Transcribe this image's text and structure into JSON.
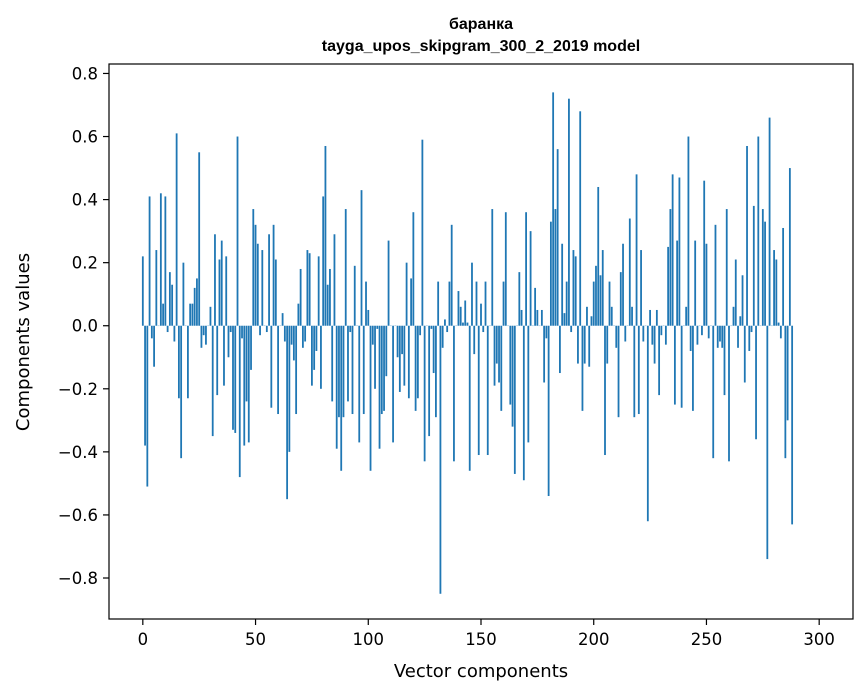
{
  "chart_data": {
    "type": "bar",
    "title": "баранка",
    "subtitle": "tayga_upos_skipgram_300_2_2019 model",
    "xlabel": "Vector components",
    "ylabel": "Components values",
    "xlim": [
      -15,
      315
    ],
    "ylim": [
      -0.93,
      0.83
    ],
    "xticks": [
      0,
      50,
      100,
      150,
      200,
      250,
      300
    ],
    "yticks": [
      -0.8,
      -0.6,
      -0.4,
      -0.2,
      0.0,
      0.2,
      0.4,
      0.6,
      0.8
    ],
    "xtick_labels": [
      "0",
      "50",
      "100",
      "150",
      "200",
      "250",
      "300"
    ],
    "ytick_labels": [
      "−0.8",
      "−0.6",
      "−0.4",
      "−0.2",
      "0.0",
      "0.2",
      "0.4",
      "0.6",
      "0.8"
    ],
    "grid": false,
    "color": "#1f77b4",
    "values": [
      0.22,
      -0.38,
      -0.51,
      0.41,
      -0.04,
      -0.13,
      0.24,
      0.0,
      0.42,
      0.07,
      0.41,
      -0.02,
      0.17,
      0.13,
      -0.05,
      0.61,
      -0.23,
      -0.42,
      0.2,
      0.0,
      -0.23,
      0.07,
      0.07,
      0.12,
      0.15,
      0.55,
      -0.07,
      -0.03,
      -0.06,
      0.0,
      0.06,
      -0.35,
      0.29,
      -0.22,
      0.21,
      0.27,
      -0.19,
      0.22,
      -0.1,
      -0.02,
      -0.33,
      -0.34,
      0.6,
      -0.48,
      -0.04,
      -0.38,
      -0.24,
      -0.37,
      -0.14,
      0.37,
      0.32,
      0.26,
      -0.03,
      0.24,
      0.0,
      -0.02,
      0.29,
      -0.26,
      0.32,
      0.21,
      -0.28,
      0.0,
      0.04,
      -0.05,
      -0.55,
      -0.4,
      -0.06,
      -0.11,
      -0.28,
      0.07,
      0.18,
      -0.07,
      -0.05,
      0.24,
      0.23,
      -0.19,
      -0.14,
      -0.08,
      0.22,
      -0.2,
      0.41,
      0.57,
      0.13,
      0.18,
      -0.24,
      0.29,
      -0.39,
      -0.29,
      -0.46,
      -0.29,
      0.37,
      -0.24,
      -0.02,
      -0.28,
      0.19,
      0.0,
      -0.37,
      0.43,
      -0.28,
      0.14,
      0.05,
      -0.46,
      -0.06,
      -0.2,
      -0.01,
      -0.39,
      -0.28,
      -0.27,
      -0.16,
      0.27,
      0.0,
      -0.37,
      0.0,
      -0.1,
      -0.21,
      -0.09,
      -0.19,
      0.2,
      -0.23,
      0.15,
      0.36,
      -0.27,
      -0.23,
      -0.03,
      0.59,
      -0.43,
      0.0,
      -0.35,
      -0.01,
      -0.15,
      -0.29,
      0.14,
      -0.85,
      -0.07,
      0.02,
      -0.02,
      0.14,
      0.32,
      -0.43,
      0.0,
      0.11,
      0.06,
      0.01,
      0.08,
      0.01,
      -0.46,
      0.2,
      -0.09,
      0.14,
      -0.41,
      0.07,
      -0.02,
      0.14,
      -0.41,
      0.0,
      0.37,
      -0.19,
      -0.12,
      -0.18,
      -0.27,
      0.14,
      0.36,
      0.0,
      -0.25,
      -0.32,
      -0.47,
      0.0,
      0.17,
      0.05,
      -0.49,
      0.36,
      -0.37,
      0.3,
      0.0,
      0.12,
      0.05,
      0.0,
      0.05,
      -0.18,
      -0.04,
      -0.54,
      0.33,
      0.74,
      0.37,
      0.56,
      -0.15,
      0.26,
      0.04,
      0.14,
      0.72,
      -0.02,
      0.24,
      0.22,
      -0.12,
      0.68,
      -0.27,
      -0.12,
      0.06,
      -0.13,
      0.03,
      0.14,
      0.19,
      0.44,
      0.16,
      0.24,
      -0.41,
      -0.12,
      0.14,
      0.06,
      0.0,
      -0.07,
      -0.29,
      0.17,
      0.26,
      -0.05,
      0.0,
      0.34,
      0.06,
      -0.29,
      0.48,
      -0.28,
      0.24,
      -0.05,
      0.0,
      -0.62,
      0.05,
      -0.06,
      -0.12,
      0.05,
      -0.22,
      -0.03,
      0.0,
      -0.06,
      0.25,
      0.37,
      0.48,
      -0.25,
      0.27,
      0.47,
      -0.26,
      0.0,
      0.06,
      0.6,
      -0.08,
      -0.27,
      0.27,
      -0.06,
      0.0,
      -0.03,
      0.46,
      0.26,
      -0.04,
      0.0,
      -0.42,
      0.32,
      -0.07,
      -0.05,
      -0.07,
      -0.22,
      0.37,
      -0.43,
      0.0,
      0.06,
      0.21,
      -0.07,
      0.03,
      0.16,
      -0.18,
      0.57,
      -0.08,
      -0.02,
      0.38,
      -0.36,
      0.6,
      0.0,
      0.37,
      0.33,
      -0.74,
      0.66,
      0.0,
      0.24,
      0.21,
      0.01,
      -0.04,
      0.31,
      -0.42,
      -0.3,
      0.5,
      -0.63
    ]
  }
}
